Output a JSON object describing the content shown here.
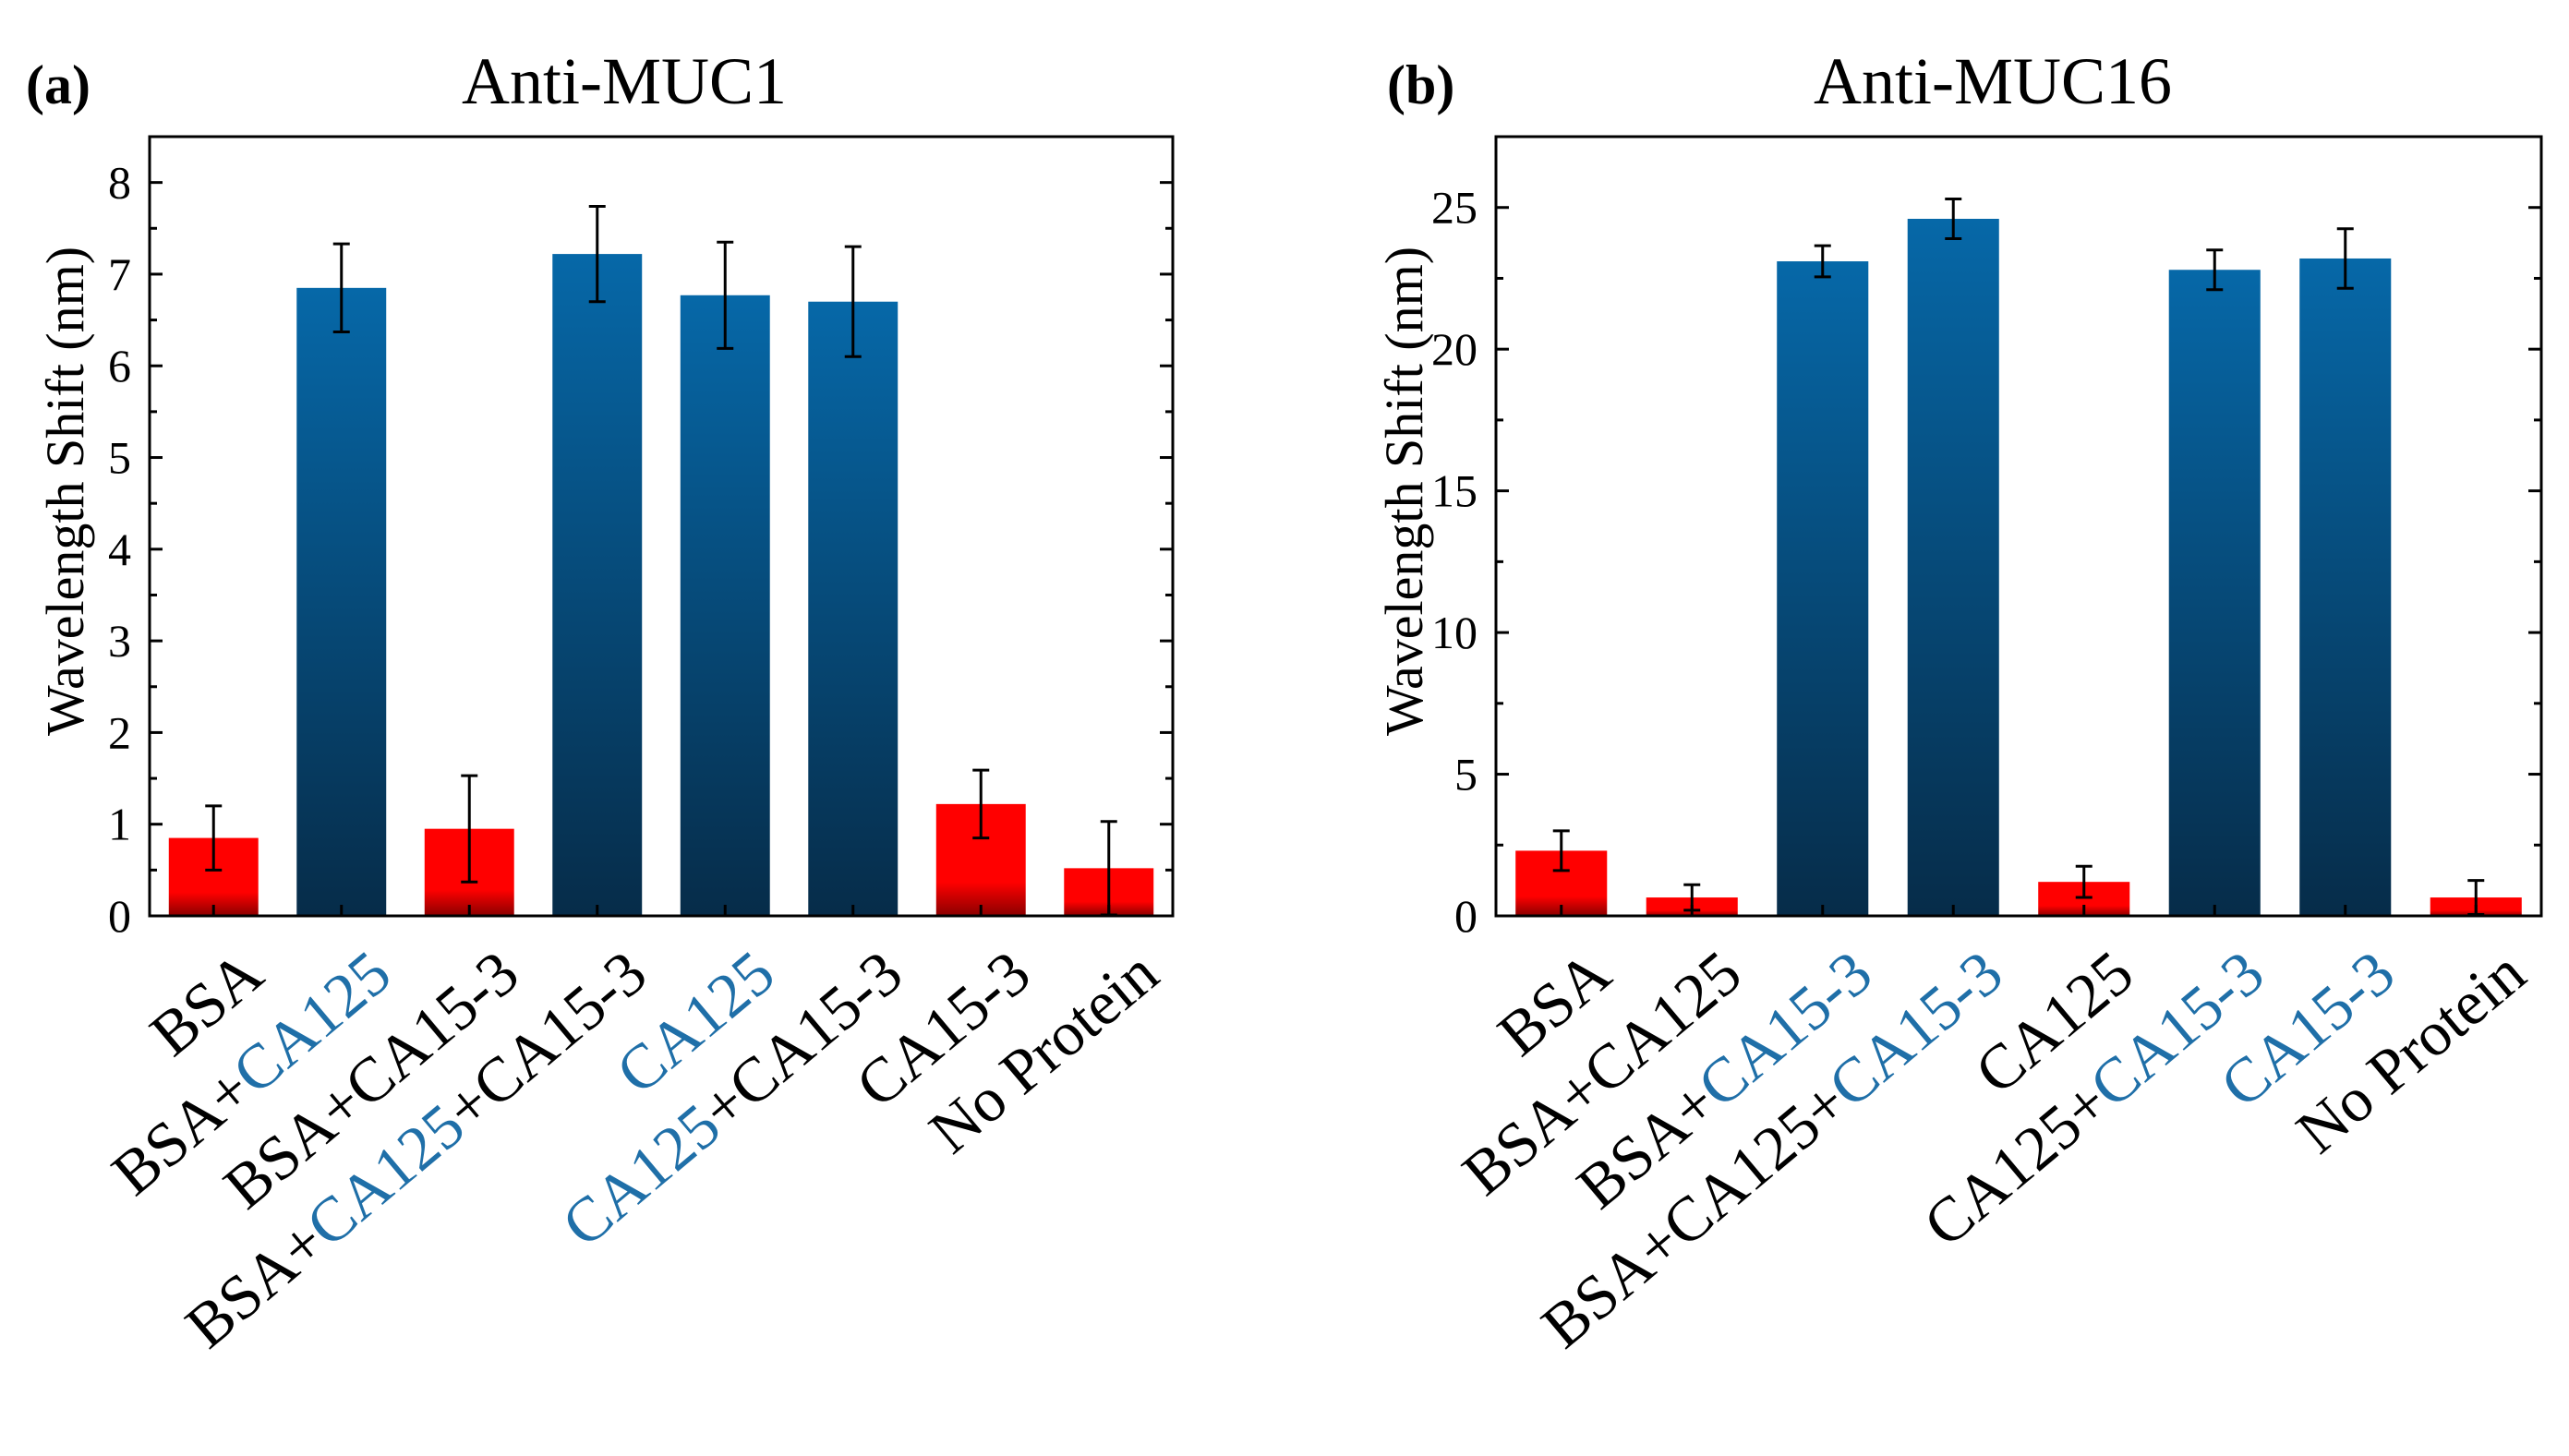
{
  "colors": {
    "negative_top": "#ff0000",
    "negative_bottom": "#8a0000",
    "positive_top": "#0668a8",
    "positive_bottom": "#062c49",
    "highlight_text": "#1f6fa8",
    "axis": "#000000"
  },
  "chart_data": [
    {
      "type": "bar",
      "panel_label": "(a)",
      "title": "Anti-MUC1",
      "xlabel": "",
      "ylabel": "Wavelength Shift (nm)",
      "ylim": [
        0,
        8.5
      ],
      "yticks": [
        0,
        1,
        2,
        3,
        4,
        5,
        6,
        7,
        8
      ],
      "yticks_minor_step": 0.5,
      "grid": false,
      "legend": "none",
      "categories": [
        "BSA",
        "BSA+CA125",
        "BSA+CA15-3",
        "BSA+CA125+CA15-3",
        "CA125",
        "CA125+CA15-3",
        "CA15-3",
        "No Protein"
      ],
      "category_label_parts": [
        [
          {
            "text": "BSA",
            "highlight": false
          }
        ],
        [
          {
            "text": "BSA+",
            "highlight": false
          },
          {
            "text": "CA125",
            "highlight": true
          }
        ],
        [
          {
            "text": "BSA+CA15-3",
            "highlight": false
          }
        ],
        [
          {
            "text": "BSA+",
            "highlight": false
          },
          {
            "text": "CA125",
            "highlight": true
          },
          {
            "text": "+CA15-3",
            "highlight": false
          }
        ],
        [
          {
            "text": "CA125",
            "highlight": true
          }
        ],
        [
          {
            "text": "CA125",
            "highlight": true
          },
          {
            "text": "+CA15-3",
            "highlight": false
          }
        ],
        [
          {
            "text": "CA15-3",
            "highlight": false
          }
        ],
        [
          {
            "text": "No Protein",
            "highlight": false
          }
        ]
      ],
      "values": [
        0.85,
        6.85,
        0.95,
        7.22,
        6.77,
        6.7,
        1.22,
        0.52
      ],
      "errors": [
        0.35,
        0.48,
        0.58,
        0.52,
        0.58,
        0.6,
        0.37,
        0.51
      ],
      "bar_color_group": [
        "negative",
        "positive",
        "negative",
        "positive",
        "positive",
        "positive",
        "negative",
        "negative"
      ]
    },
    {
      "type": "bar",
      "panel_label": "(b)",
      "title": "Anti-MUC16",
      "xlabel": "",
      "ylabel": "Wavelength Shift (nm)",
      "ylim": [
        0,
        27.5
      ],
      "yticks": [
        0,
        5,
        10,
        15,
        20,
        25
      ],
      "yticks_minor_step": 2.5,
      "grid": false,
      "legend": "none",
      "categories": [
        "BSA",
        "BSA+CA125",
        "BSA+CA15-3",
        "BSA+CA125+CA15-3",
        "CA125",
        "CA125+CA15-3",
        "CA15-3",
        "No Protein"
      ],
      "category_label_parts": [
        [
          {
            "text": "BSA",
            "highlight": false
          }
        ],
        [
          {
            "text": "BSA+CA125",
            "highlight": false
          }
        ],
        [
          {
            "text": "BSA+",
            "highlight": false
          },
          {
            "text": "CA15-3",
            "highlight": true
          }
        ],
        [
          {
            "text": "BSA+CA125+",
            "highlight": false
          },
          {
            "text": "CA15-3",
            "highlight": true
          }
        ],
        [
          {
            "text": "CA125",
            "highlight": false
          }
        ],
        [
          {
            "text": "CA125+",
            "highlight": false
          },
          {
            "text": "CA15-3",
            "highlight": true
          }
        ],
        [
          {
            "text": "CA15-3",
            "highlight": true
          }
        ],
        [
          {
            "text": "No Protein",
            "highlight": false
          }
        ]
      ],
      "values": [
        2.3,
        0.65,
        23.1,
        24.6,
        1.2,
        22.8,
        23.2,
        0.65
      ],
      "errors": [
        0.7,
        0.45,
        0.55,
        0.7,
        0.55,
        0.7,
        1.05,
        0.6
      ],
      "bar_color_group": [
        "negative",
        "negative",
        "positive",
        "positive",
        "negative",
        "positive",
        "positive",
        "negative"
      ]
    }
  ]
}
